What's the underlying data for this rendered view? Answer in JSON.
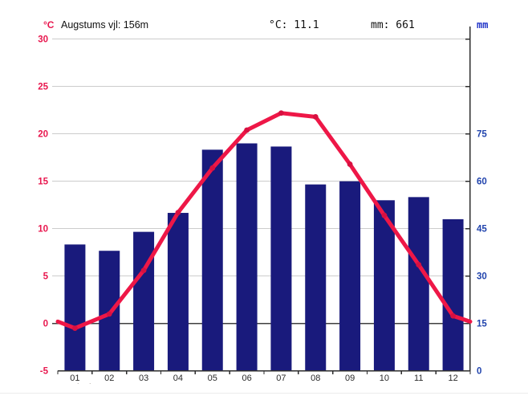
{
  "header": {
    "left_unit": "°C",
    "title": "Augstums vjl: 156m",
    "avg_temp": "°C: 11.1",
    "total_precip": "mm: 661",
    "right_unit": "mm"
  },
  "footer": {
    "marks": ". ."
  },
  "colors": {
    "bar": "#191a7c",
    "line": "#ee1747",
    "marker": "#d81040",
    "left_axis_text": "#e8174e",
    "right_axis_text": "#2144ad",
    "grid": "#cccccc",
    "zero_line": "#3f3f3f",
    "axis": "#2e2e2e",
    "month_text": "#2b2b2b"
  },
  "chart_data": {
    "type": "bar+line climate chart",
    "title": "Augstums vjl: 156m",
    "annotations": {
      "altitude_m": 156,
      "mean_annual_temp_c": 11.1,
      "annual_precipitation_mm": 661
    },
    "categories": [
      "01",
      "02",
      "03",
      "04",
      "05",
      "06",
      "07",
      "08",
      "09",
      "10",
      "11",
      "12"
    ],
    "series": [
      {
        "name": "precipitation_mm",
        "type": "bar",
        "axis": "right",
        "values": [
          40,
          38,
          44,
          50,
          70,
          72,
          71,
          59,
          60,
          54,
          55,
          48
        ]
      },
      {
        "name": "temperature_c",
        "type": "line",
        "axis": "left",
        "values": [
          -0.5,
          1.0,
          5.6,
          11.7,
          16.4,
          20.4,
          22.2,
          21.8,
          16.8,
          11.4,
          6.2,
          0.8
        ],
        "edge_values": {
          "left": 0.2,
          "right": 0.2
        }
      }
    ],
    "left_axis": {
      "unit": "°C",
      "min": -5,
      "max": 30,
      "tick_labels": [
        30,
        25,
        20,
        15,
        10,
        5,
        0,
        -5
      ],
      "gridlines": [
        30,
        25,
        20,
        15,
        10,
        5
      ],
      "zero_line": 0
    },
    "right_axis": {
      "unit": "mm",
      "min": 0,
      "max": 105,
      "labeled_ticks": [
        75,
        60,
        45,
        30,
        15,
        0
      ],
      "all_ticks": [
        105,
        90,
        75,
        60,
        45,
        30,
        15,
        0
      ]
    },
    "grid": true,
    "legend": "none"
  }
}
